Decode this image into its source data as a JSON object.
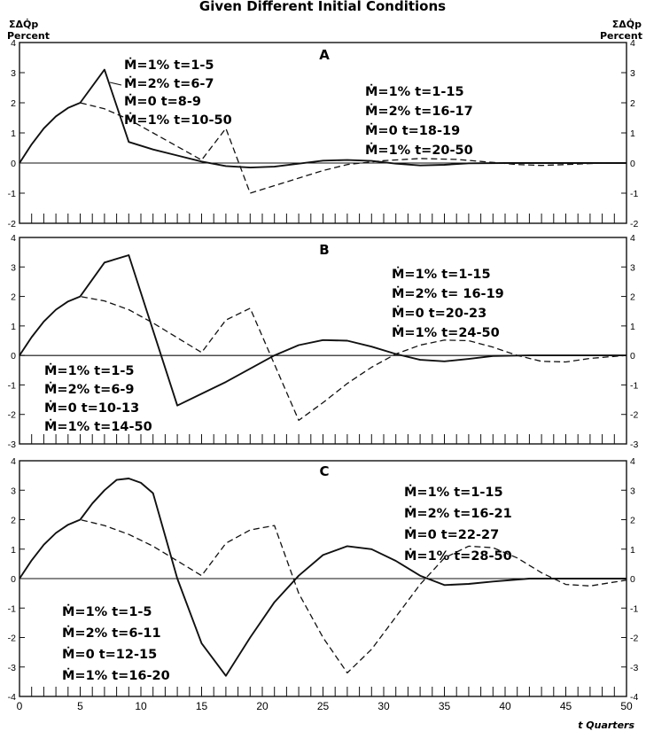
{
  "title": "Given Different Initial Conditions",
  "axis_labels": {
    "y_symbol": "ΣΔQ̇p",
    "y_unit": "Percent",
    "x_label": "t Quarters"
  },
  "chart_data": [
    {
      "type": "line",
      "panel_label": "A",
      "ylim": [
        -2,
        4
      ],
      "yticks": [
        -2,
        -1,
        0,
        1,
        2,
        3,
        4
      ],
      "xlim": [
        0,
        50
      ],
      "grid": false,
      "series": [
        {
          "style": "solid",
          "points": [
            [
              0,
              0
            ],
            [
              1,
              0.62
            ],
            [
              2,
              1.15
            ],
            [
              3,
              1.55
            ],
            [
              4,
              1.83
            ],
            [
              5,
              2.0
            ],
            [
              7,
              3.1
            ],
            [
              9,
              0.7
            ],
            [
              11,
              0.45
            ],
            [
              13,
              0.25
            ],
            [
              15,
              0.05
            ],
            [
              17,
              -0.1
            ],
            [
              19,
              -0.15
            ],
            [
              21,
              -0.12
            ],
            [
              23,
              -0.02
            ],
            [
              25,
              0.08
            ],
            [
              27,
              0.1
            ],
            [
              29,
              0.07
            ],
            [
              31,
              -0.02
            ],
            [
              33,
              -0.08
            ],
            [
              35,
              -0.06
            ],
            [
              37,
              -0.01
            ],
            [
              40,
              0.0
            ],
            [
              50,
              0.0
            ]
          ]
        },
        {
          "style": "dashed",
          "points": [
            [
              0,
              0
            ],
            [
              1,
              0.62
            ],
            [
              2,
              1.15
            ],
            [
              3,
              1.55
            ],
            [
              4,
              1.83
            ],
            [
              5,
              2.0
            ],
            [
              7,
              1.8
            ],
            [
              9,
              1.45
            ],
            [
              11,
              1.0
            ],
            [
              13,
              0.55
            ],
            [
              15,
              0.1
            ],
            [
              17,
              1.15
            ],
            [
              19,
              -1.0
            ],
            [
              21,
              -0.75
            ],
            [
              23,
              -0.5
            ],
            [
              25,
              -0.25
            ],
            [
              27,
              -0.05
            ],
            [
              30,
              0.08
            ],
            [
              33,
              0.15
            ],
            [
              36,
              0.12
            ],
            [
              39,
              0.02
            ],
            [
              41,
              -0.05
            ],
            [
              43,
              -0.08
            ],
            [
              45,
              -0.05
            ],
            [
              48,
              0.0
            ],
            [
              50,
              0.0
            ]
          ]
        }
      ],
      "annotations": [
        {
          "lines": [
            "Ṁ=1% t=1-5",
            "Ṁ=2% t=6-7",
            "Ṁ=0 t=8-9",
            "Ṁ=1% t=10-50"
          ]
        },
        {
          "lines": [
            "Ṁ=1% t=1-15",
            "Ṁ=2% t=16-17",
            "Ṁ=0 t=18-19",
            "Ṁ=1% t=20-50"
          ]
        }
      ]
    },
    {
      "type": "line",
      "panel_label": "B",
      "ylim": [
        -3,
        4
      ],
      "yticks": [
        -3,
        -2,
        -1,
        0,
        1,
        2,
        3,
        4
      ],
      "xlim": [
        0,
        50
      ],
      "grid": false,
      "series": [
        {
          "style": "solid",
          "points": [
            [
              0,
              0
            ],
            [
              1,
              0.62
            ],
            [
              2,
              1.15
            ],
            [
              3,
              1.55
            ],
            [
              4,
              1.83
            ],
            [
              5,
              2.0
            ],
            [
              7,
              3.15
            ],
            [
              9,
              3.4
            ],
            [
              13,
              -1.7
            ],
            [
              15,
              -1.3
            ],
            [
              17,
              -0.9
            ],
            [
              19,
              -0.45
            ],
            [
              21,
              0.0
            ],
            [
              23,
              0.35
            ],
            [
              25,
              0.52
            ],
            [
              27,
              0.5
            ],
            [
              29,
              0.3
            ],
            [
              31,
              0.05
            ],
            [
              33,
              -0.15
            ],
            [
              35,
              -0.2
            ],
            [
              37,
              -0.12
            ],
            [
              39,
              -0.02
            ],
            [
              42,
              0.0
            ],
            [
              50,
              0.0
            ]
          ]
        },
        {
          "style": "dashed",
          "points": [
            [
              0,
              0
            ],
            [
              1,
              0.62
            ],
            [
              2,
              1.15
            ],
            [
              3,
              1.55
            ],
            [
              4,
              1.83
            ],
            [
              5,
              2.0
            ],
            [
              7,
              1.85
            ],
            [
              9,
              1.55
            ],
            [
              11,
              1.1
            ],
            [
              13,
              0.6
            ],
            [
              15,
              0.1
            ],
            [
              17,
              1.2
            ],
            [
              19,
              1.6
            ],
            [
              23,
              -2.2
            ],
            [
              25,
              -1.6
            ],
            [
              27,
              -0.95
            ],
            [
              29,
              -0.4
            ],
            [
              31,
              0.05
            ],
            [
              33,
              0.35
            ],
            [
              35,
              0.52
            ],
            [
              37,
              0.5
            ],
            [
              39,
              0.28
            ],
            [
              41,
              0.0
            ],
            [
              43,
              -0.2
            ],
            [
              45,
              -0.22
            ],
            [
              47,
              -0.1
            ],
            [
              50,
              0.0
            ]
          ]
        }
      ],
      "annotations": [
        {
          "lines": [
            "Ṁ=1% t=1-15",
            "Ṁ=2% t= 16-19",
            "Ṁ=0 t=20-23",
            "Ṁ=1% t=24-50"
          ]
        },
        {
          "lines": [
            "Ṁ=1% t=1-5",
            "Ṁ=2% t=6-9",
            "Ṁ=0 t=10-13",
            "Ṁ=1% t=14-50"
          ]
        }
      ]
    },
    {
      "type": "line",
      "panel_label": "C",
      "ylim": [
        -4,
        4
      ],
      "yticks": [
        -4,
        -3,
        -2,
        -1,
        0,
        1,
        2,
        3,
        4
      ],
      "xlim": [
        0,
        50
      ],
      "grid": false,
      "series": [
        {
          "style": "solid",
          "points": [
            [
              0,
              0
            ],
            [
              1,
              0.62
            ],
            [
              2,
              1.15
            ],
            [
              3,
              1.55
            ],
            [
              4,
              1.83
            ],
            [
              5,
              2.0
            ],
            [
              6,
              2.55
            ],
            [
              7,
              3.0
            ],
            [
              8,
              3.35
            ],
            [
              9,
              3.4
            ],
            [
              10,
              3.25
            ],
            [
              11,
              2.9
            ],
            [
              13,
              0.0
            ],
            [
              15,
              -2.2
            ],
            [
              17,
              -3.3
            ],
            [
              19,
              -2.0
            ],
            [
              21,
              -0.8
            ],
            [
              23,
              0.1
            ],
            [
              25,
              0.8
            ],
            [
              27,
              1.1
            ],
            [
              29,
              1.0
            ],
            [
              31,
              0.6
            ],
            [
              33,
              0.1
            ],
            [
              35,
              -0.22
            ],
            [
              37,
              -0.18
            ],
            [
              39,
              -0.1
            ],
            [
              42,
              0.0
            ],
            [
              50,
              0.0
            ]
          ]
        },
        {
          "style": "dashed",
          "points": [
            [
              0,
              0
            ],
            [
              1,
              0.62
            ],
            [
              2,
              1.15
            ],
            [
              3,
              1.55
            ],
            [
              4,
              1.83
            ],
            [
              5,
              2.0
            ],
            [
              7,
              1.8
            ],
            [
              9,
              1.5
            ],
            [
              11,
              1.1
            ],
            [
              13,
              0.6
            ],
            [
              15,
              0.1
            ],
            [
              17,
              1.2
            ],
            [
              19,
              1.65
            ],
            [
              21,
              1.8
            ],
            [
              23,
              -0.5
            ],
            [
              25,
              -2.0
            ],
            [
              27,
              -3.2
            ],
            [
              29,
              -2.4
            ],
            [
              31,
              -1.3
            ],
            [
              33,
              -0.2
            ],
            [
              35,
              0.7
            ],
            [
              37,
              1.1
            ],
            [
              39,
              1.05
            ],
            [
              41,
              0.7
            ],
            [
              43,
              0.2
            ],
            [
              45,
              -0.2
            ],
            [
              47,
              -0.25
            ],
            [
              50,
              -0.05
            ]
          ]
        }
      ],
      "annotations": [
        {
          "lines": [
            "Ṁ=1% t=1-15",
            "Ṁ=2% t=16-21",
            "Ṁ=0 t=22-27",
            "Ṁ=1% t=28-50"
          ]
        },
        {
          "lines": [
            "Ṁ=1% t=1-5",
            "Ṁ=2% t=6-11",
            "Ṁ=0 t=12-15",
            "Ṁ=1% t=16-20"
          ]
        }
      ]
    }
  ],
  "x_tick_labels": [
    "0",
    "5",
    "10",
    "15",
    "20",
    "25",
    "30",
    "35",
    "40",
    "45",
    "50"
  ]
}
